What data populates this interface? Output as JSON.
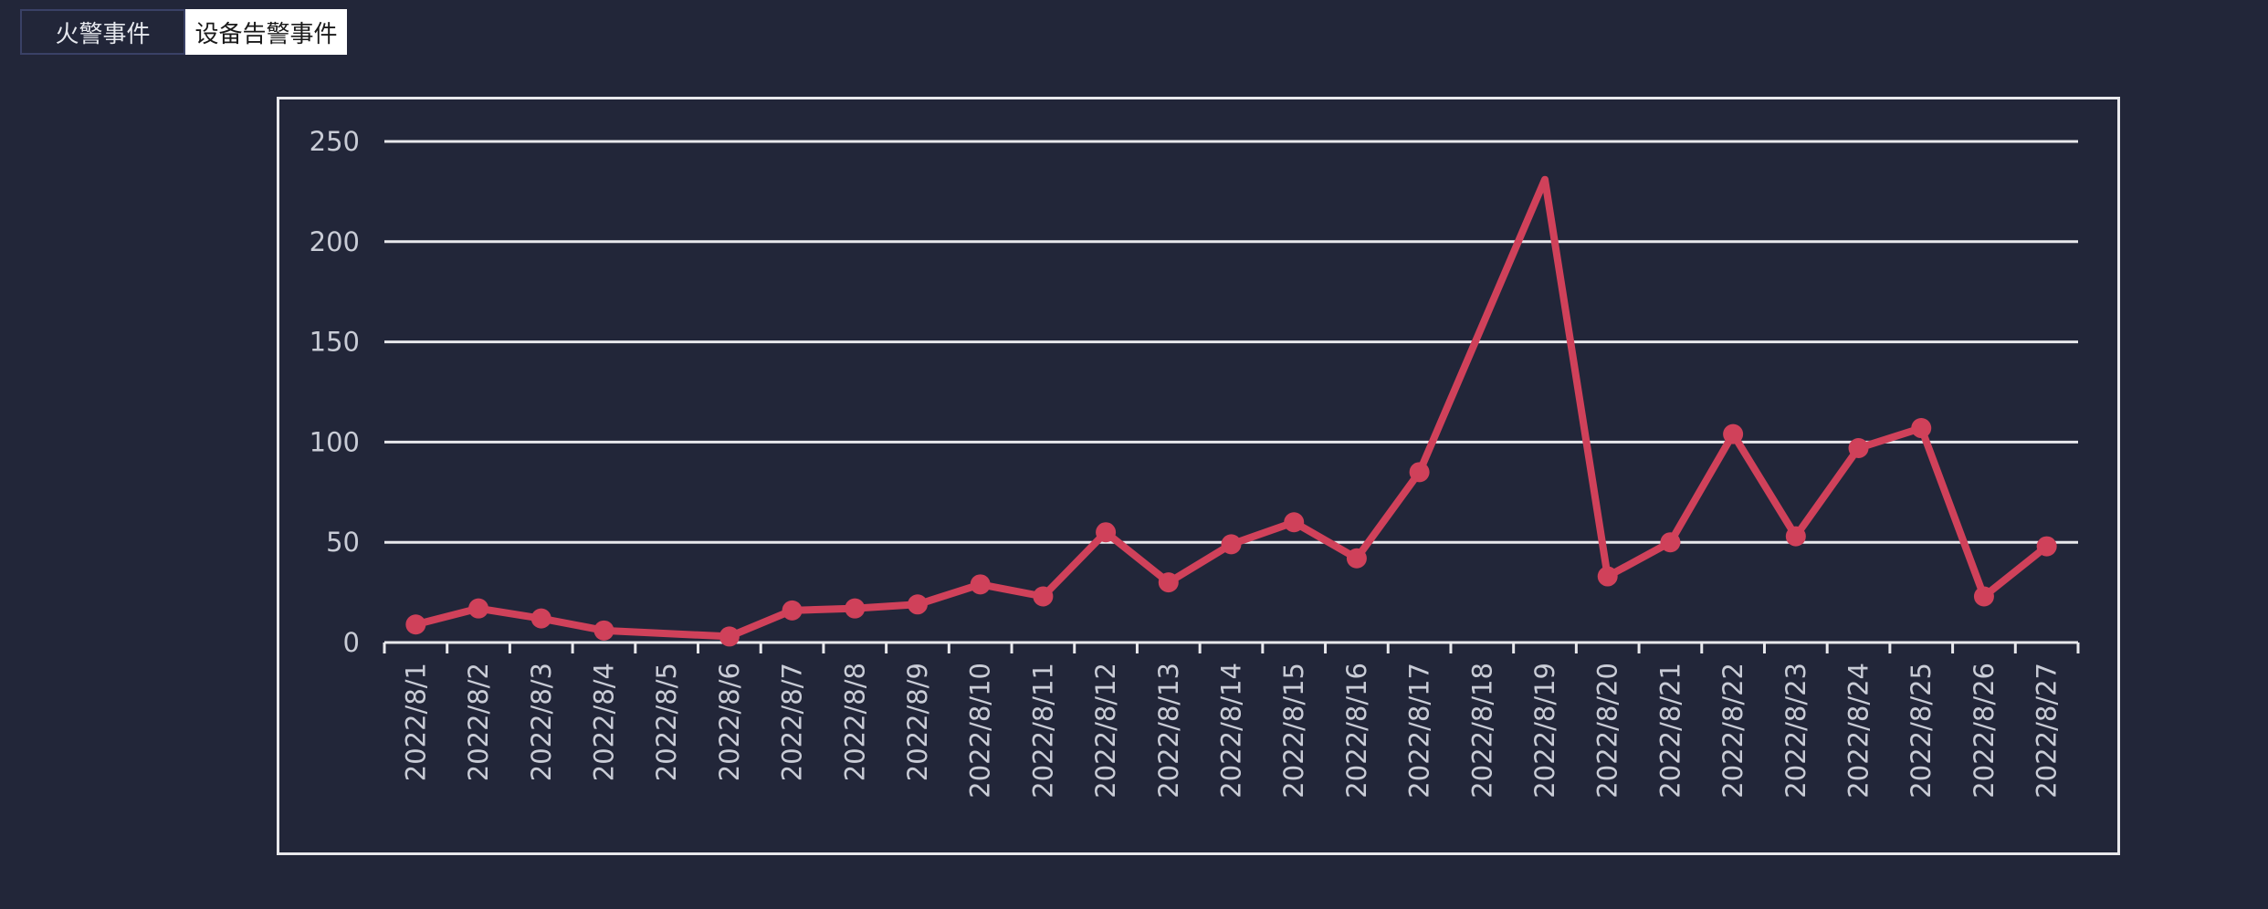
{
  "tabs": [
    {
      "label": "火警事件",
      "active": false
    },
    {
      "label": "设备告警事件",
      "active": true
    }
  ],
  "colors": {
    "background": "#222639",
    "line": "#d0415a",
    "grid": "#e8e8ec",
    "tick_text": "#c9ccd6"
  },
  "chart_data": {
    "type": "line",
    "title": "",
    "xlabel": "",
    "ylabel": "",
    "ylim": [
      0,
      250
    ],
    "yticks": [
      0,
      50,
      100,
      150,
      200,
      250
    ],
    "grid": true,
    "legend": "none",
    "categories": [
      "2022/8/1",
      "2022/8/2",
      "2022/8/3",
      "2022/8/4",
      "2022/8/5",
      "2022/8/6",
      "2022/8/7",
      "2022/8/8",
      "2022/8/9",
      "2022/8/10",
      "2022/8/11",
      "2022/8/12",
      "2022/8/13",
      "2022/8/14",
      "2022/8/15",
      "2022/8/16",
      "2022/8/17",
      "2022/8/18",
      "2022/8/19",
      "2022/8/20",
      "2022/8/21",
      "2022/8/22",
      "2022/8/23",
      "2022/8/24",
      "2022/8/25",
      "2022/8/26",
      "2022/8/27"
    ],
    "values": [
      9,
      17,
      12,
      6,
      null,
      3,
      16,
      17,
      19,
      29,
      23,
      55,
      30,
      49,
      60,
      42,
      85,
      null,
      231,
      33,
      50,
      104,
      53,
      97,
      107,
      23,
      48
    ]
  }
}
